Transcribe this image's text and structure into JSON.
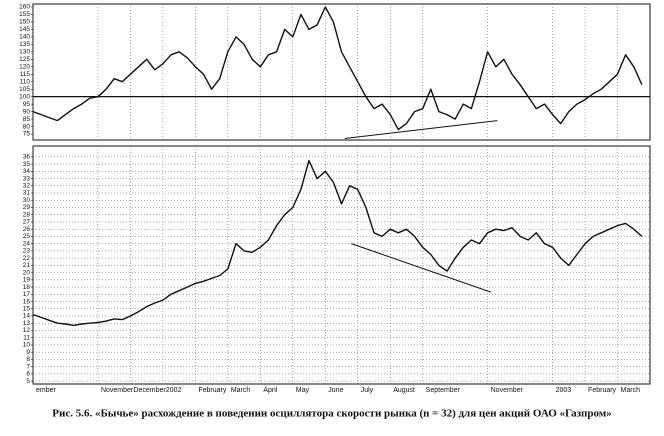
{
  "caption": "Рис. 5.6. «Бычье» расхождение в поведении осциллятора скорости рынка (n = 32) для цен акций ОАО «Газпром»",
  "chart_data": [
    {
      "type": "line",
      "color": "#111111",
      "grid": false,
      "reference_line": 100,
      "xlim": [
        0,
        19
      ],
      "ylim": [
        71,
        162
      ],
      "yticks": [
        75,
        80,
        85,
        90,
        95,
        100,
        105,
        110,
        115,
        120,
        125,
        130,
        135,
        140,
        145,
        150,
        155,
        160
      ],
      "x": [
        0,
        0.25,
        0.5,
        0.75,
        1,
        1.25,
        1.5,
        1.75,
        2,
        2.25,
        2.5,
        2.75,
        3,
        3.25,
        3.5,
        3.75,
        4,
        4.25,
        4.5,
        4.75,
        5,
        5.25,
        5.5,
        5.75,
        6,
        6.25,
        6.5,
        6.75,
        7,
        7.25,
        7.5,
        7.75,
        8,
        8.25,
        8.5,
        8.75,
        9,
        9.25,
        9.5,
        9.75,
        10,
        10.25,
        10.5,
        10.75,
        11,
        11.25,
        11.5,
        11.75,
        12,
        12.25,
        12.5,
        12.75,
        13,
        13.25,
        13.5,
        13.75,
        14,
        14.25,
        14.5,
        14.75,
        15,
        15.25,
        15.5,
        15.75,
        16,
        16.25,
        16.5,
        16.75,
        17,
        17.25,
        17.5,
        17.75,
        18,
        18.25,
        18.5,
        18.75
      ],
      "values": [
        90,
        88,
        86,
        84,
        88,
        92,
        95,
        99,
        100,
        105,
        112,
        110,
        115,
        120,
        125,
        118,
        122,
        128,
        130,
        126,
        120,
        115,
        105,
        112,
        130,
        140,
        135,
        125,
        120,
        128,
        130,
        145,
        140,
        155,
        145,
        148,
        160,
        150,
        130,
        120,
        110,
        100,
        92,
        95,
        88,
        78,
        82,
        90,
        92,
        105,
        90,
        88,
        85,
        95,
        92,
        110,
        130,
        120,
        125,
        115,
        108,
        100,
        92,
        95,
        88,
        82,
        90,
        95,
        98,
        102,
        105,
        110,
        115,
        128,
        120,
        108
      ],
      "trend_line": {
        "x": [
          9.6,
          14.3
        ],
        "y": [
          72,
          84
        ]
      }
    },
    {
      "type": "line",
      "color": "#111111",
      "grid": true,
      "xlim": [
        0,
        19
      ],
      "ylim": [
        4.6,
        37.5
      ],
      "yticks": [
        5,
        6,
        7,
        8,
        9,
        10,
        11,
        12,
        13,
        14,
        15,
        16,
        17,
        18,
        19,
        20,
        21,
        22,
        23,
        24,
        25,
        26,
        27,
        28,
        29,
        30,
        31,
        32,
        33,
        34,
        35,
        36
      ],
      "xticks": [
        {
          "value": 0,
          "label": "ember"
        },
        {
          "value": 2,
          "label": "November"
        },
        {
          "value": 3,
          "label": "December"
        },
        {
          "value": 4,
          "label": "2002"
        },
        {
          "value": 5,
          "label": "February"
        },
        {
          "value": 6,
          "label": "March"
        },
        {
          "value": 7,
          "label": "April"
        },
        {
          "value": 8,
          "label": "May"
        },
        {
          "value": 9,
          "label": "June"
        },
        {
          "value": 10,
          "label": "July"
        },
        {
          "value": 11,
          "label": "August"
        },
        {
          "value": 12,
          "label": "September"
        },
        {
          "value": 14,
          "label": "November"
        },
        {
          "value": 16,
          "label": "2003"
        },
        {
          "value": 17,
          "label": "February"
        },
        {
          "value": 18,
          "label": "March"
        }
      ],
      "x": [
        0,
        0.25,
        0.5,
        0.75,
        1,
        1.25,
        1.5,
        1.75,
        2,
        2.25,
        2.5,
        2.75,
        3,
        3.25,
        3.5,
        3.75,
        4,
        4.25,
        4.5,
        4.75,
        5,
        5.25,
        5.5,
        5.75,
        6,
        6.25,
        6.5,
        6.75,
        7,
        7.25,
        7.5,
        7.75,
        8,
        8.25,
        8.5,
        8.75,
        9,
        9.25,
        9.5,
        9.75,
        10,
        10.25,
        10.5,
        10.75,
        11,
        11.25,
        11.5,
        11.75,
        12,
        12.25,
        12.5,
        12.75,
        13,
        13.25,
        13.5,
        13.75,
        14,
        14.25,
        14.5,
        14.75,
        15,
        15.25,
        15.5,
        15.75,
        16,
        16.25,
        16.5,
        16.75,
        17,
        17.25,
        17.5,
        17.75,
        18,
        18.25,
        18.5,
        18.75
      ],
      "values": [
        14.2,
        13.8,
        13.4,
        13.0,
        12.9,
        12.7,
        12.9,
        13.0,
        13.1,
        13.3,
        13.6,
        13.5,
        14.0,
        14.6,
        15.3,
        15.8,
        16.2,
        17.0,
        17.5,
        18.0,
        18.5,
        18.8,
        19.2,
        19.6,
        20.5,
        24.0,
        23.0,
        22.8,
        23.5,
        24.5,
        26.5,
        28.0,
        29.0,
        31.5,
        35.5,
        33.0,
        34.0,
        32.5,
        29.5,
        32.0,
        31.5,
        29.0,
        25.5,
        25.0,
        26.0,
        25.5,
        26.0,
        25.0,
        23.5,
        22.5,
        21.0,
        20.2,
        22.0,
        23.5,
        24.5,
        24.0,
        25.5,
        26.0,
        25.8,
        26.2,
        25.0,
        24.5,
        25.5,
        24.0,
        23.5,
        22.0,
        21.0,
        22.5,
        24.0,
        25.0,
        25.5,
        26.0,
        26.5,
        26.8,
        26.0,
        25.0
      ],
      "trend_line": {
        "x": [
          9.8,
          14.1
        ],
        "y": [
          24.0,
          17.3
        ]
      }
    }
  ]
}
